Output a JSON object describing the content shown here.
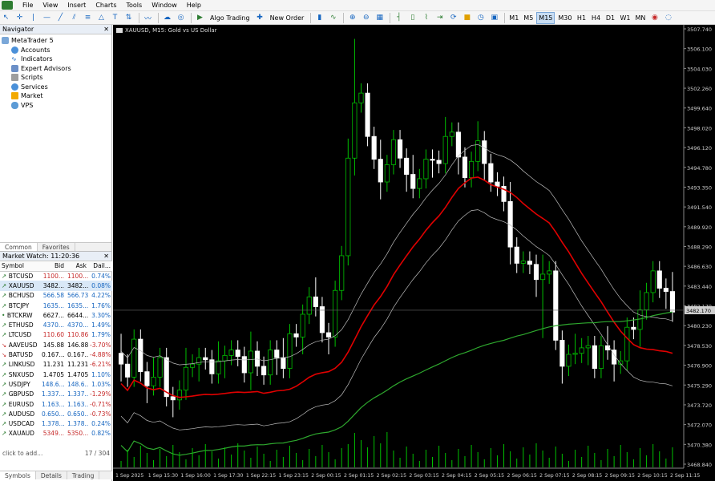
{
  "menu": [
    "File",
    "View",
    "Insert",
    "Charts",
    "Tools",
    "Window",
    "Help"
  ],
  "toolbar": {
    "algo_trading": "Algo Trading",
    "new_order": "New Order",
    "timeframes": [
      "M1",
      "M5",
      "M15",
      "M30",
      "H1",
      "H4",
      "D1",
      "W1",
      "MN"
    ],
    "active_timeframe": "M15"
  },
  "navigator": {
    "title": "Navigator",
    "root": "MetaTrader 5",
    "items": [
      "Accounts",
      "Indicators",
      "Expert Advisors",
      "Scripts",
      "Services",
      "Market",
      "VPS"
    ],
    "tabs": [
      "Common",
      "Favorites"
    ]
  },
  "market_watch": {
    "title": "Market Watch: 11:20:36",
    "columns": [
      "Symbol",
      "Bid",
      "Ask",
      "Dail..."
    ],
    "rows": [
      {
        "symbol": "BTCUSD",
        "bid": "1100...",
        "ask": "1100...",
        "daily": "0.74%",
        "dir": "up",
        "bid_color": "dn"
      },
      {
        "symbol": "XAUUSD",
        "bid": "3482...",
        "ask": "3482...",
        "daily": "0.08%",
        "dir": "up",
        "bid_color": "plain",
        "selected": true
      },
      {
        "symbol": "BCHUSD",
        "bid": "566.58",
        "ask": "566.73",
        "daily": "4.22%",
        "dir": "up",
        "bid_color": "up"
      },
      {
        "symbol": "BTCJPY",
        "bid": "1635...",
        "ask": "1635...",
        "daily": "1.76%",
        "dir": "up",
        "bid_color": "up"
      },
      {
        "symbol": "BTCKRW",
        "bid": "6627...",
        "ask": "6644...",
        "daily": "3.30%",
        "dir": "flat",
        "bid_color": "plain"
      },
      {
        "symbol": "ETHUSD",
        "bid": "4370...",
        "ask": "4370...",
        "daily": "1.49%",
        "dir": "up",
        "bid_color": "up"
      },
      {
        "symbol": "LTCUSD",
        "bid": "110.60",
        "ask": "110.86",
        "daily": "1.79%",
        "dir": "up",
        "bid_color": "dn"
      },
      {
        "symbol": "AAVEUSD",
        "bid": "145.88",
        "ask": "146.88",
        "daily": "-3.70%",
        "dir": "dn",
        "bid_color": "plain"
      },
      {
        "symbol": "BATUSD",
        "bid": "0.167...",
        "ask": "0.167...",
        "daily": "-4.88%",
        "dir": "dn",
        "bid_color": "plain"
      },
      {
        "symbol": "LINKUSD",
        "bid": "11.231",
        "ask": "11.231",
        "daily": "-6.21%",
        "dir": "up",
        "bid_color": "plain"
      },
      {
        "symbol": "SNXUSD",
        "bid": "1.4705",
        "ask": "1.4705",
        "daily": "1.10%",
        "dir": "up",
        "bid_color": "plain"
      },
      {
        "symbol": "USDJPY",
        "bid": "148.6...",
        "ask": "148.6...",
        "daily": "1.03%",
        "dir": "up",
        "bid_color": "up"
      },
      {
        "symbol": "GBPUSD",
        "bid": "1.337...",
        "ask": "1.337...",
        "daily": "-1.29%",
        "dir": "up",
        "bid_color": "up"
      },
      {
        "symbol": "EURUSD",
        "bid": "1.163...",
        "ask": "1.163...",
        "daily": "-0.71%",
        "dir": "up",
        "bid_color": "up"
      },
      {
        "symbol": "AUDUSD",
        "bid": "0.650...",
        "ask": "0.650...",
        "daily": "-0.73%",
        "dir": "up",
        "bid_color": "up"
      },
      {
        "symbol": "USDCAD",
        "bid": "1.378...",
        "ask": "1.378...",
        "daily": "0.24%",
        "dir": "up",
        "bid_color": "up"
      },
      {
        "symbol": "XAUAUD",
        "bid": "5349...",
        "ask": "5350...",
        "daily": "0.82%",
        "dir": "up",
        "bid_color": "dn"
      }
    ],
    "add_hint": "click to add...",
    "count": "17 / 304",
    "tabs": [
      "Symbols",
      "Details",
      "Trading"
    ]
  },
  "chart": {
    "title": "XAUUSD, M15:  Gold vs US Dollar",
    "current_price": "3482.170",
    "price_labels": [
      "3507.740",
      "3506.100",
      "3504.030",
      "3502.260",
      "3499.640",
      "3498.020",
      "3496.120",
      "3494.780",
      "3493.350",
      "3491.540",
      "3489.920",
      "3488.290",
      "3486.630",
      "3483.440",
      "3482.170",
      "3480.230",
      "3478.530",
      "3476.900",
      "3475.290",
      "3473.720",
      "3472.070",
      "3470.380",
      "3468.840"
    ],
    "time_labels": [
      "1 Sep 2025",
      "1 Sep 15:30",
      "1 Sep 16:00",
      "1 Sep 17:30",
      "1 Sep 22:15",
      "1 Sep 23:15",
      "2 Sep 00:15",
      "2 Sep 01:15",
      "2 Sep 02:15",
      "2 Sep 03:15",
      "2 Sep 04:15",
      "2 Sep 05:15",
      "2 Sep 06:15",
      "2 Sep 07:15",
      "2 Sep 08:15",
      "2 Sep 09:15",
      "2 Sep 10:15",
      "2 Sep 11:15"
    ],
    "colors": {
      "up": "#00c000",
      "down": "#ffffff",
      "ma_mid": "#e00000",
      "ma_slow": "#2ea82e",
      "band": "#bdbdbd"
    }
  }
}
